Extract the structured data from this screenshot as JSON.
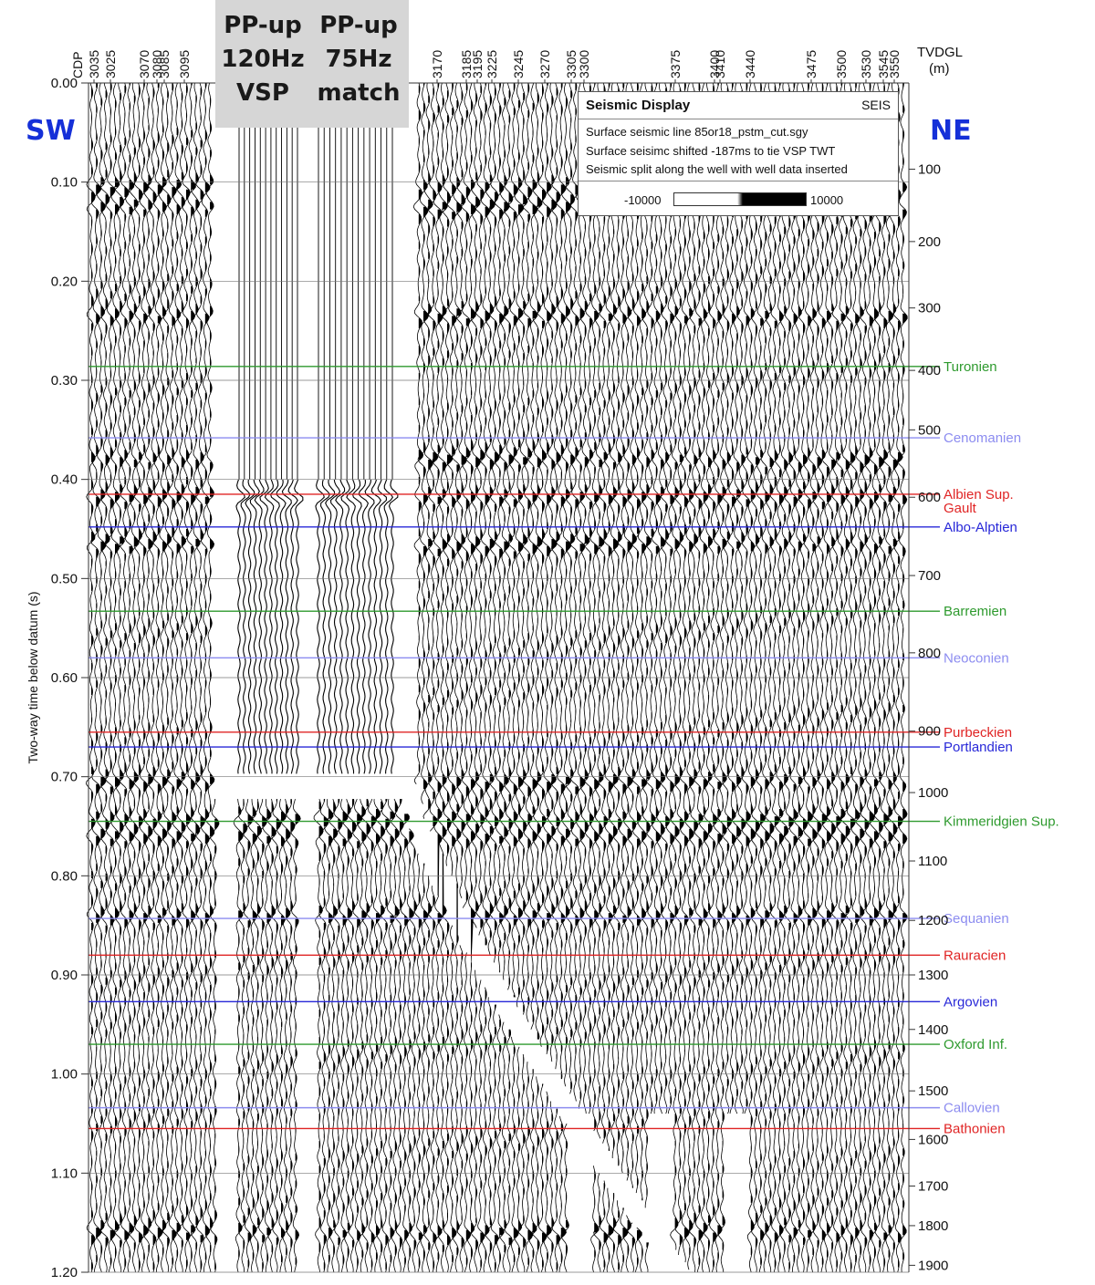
{
  "chart_data": {
    "type": "seismic-section",
    "direction_left": "SW",
    "direction_right": "NE",
    "ylabel": "Two-way time below datum (s)",
    "ylim": [
      0.0,
      1.2
    ],
    "y_ticks": [
      "0.00",
      "0.10",
      "0.20",
      "0.30",
      "0.40",
      "0.50",
      "0.60",
      "0.70",
      "0.80",
      "0.90",
      "1.00",
      "1.10",
      "1.20"
    ],
    "cdp_axis_label": "CDP",
    "cdp_labels_left": [
      "3035",
      "3025",
      "3070",
      "3080",
      "3085",
      "3095"
    ],
    "cdp_labels_right": [
      "3170",
      "3185",
      "3195",
      "3225",
      "3245",
      "3270",
      "3305",
      "3300",
      "3375",
      "3400",
      "3410",
      "3440",
      "3475",
      "3500",
      "3530",
      "3545",
      "3550"
    ],
    "depth_axis_label": "TVDGL",
    "depth_axis_unit": "(m)",
    "depth_ticks": [
      {
        "label": "100",
        "t": 0.087
      },
      {
        "label": "200",
        "t": 0.16
      },
      {
        "label": "300",
        "t": 0.227
      },
      {
        "label": "400",
        "t": 0.29
      },
      {
        "label": "500",
        "t": 0.35
      },
      {
        "label": "600",
        "t": 0.418
      },
      {
        "label": "700",
        "t": 0.497
      },
      {
        "label": "800",
        "t": 0.575
      },
      {
        "label": "900",
        "t": 0.654
      },
      {
        "label": "1000",
        "t": 0.716
      },
      {
        "label": "1100",
        "t": 0.785
      },
      {
        "label": "1200",
        "t": 0.845
      },
      {
        "label": "1300",
        "t": 0.9
      },
      {
        "label": "1400",
        "t": 0.955
      },
      {
        "label": "1500",
        "t": 1.017
      },
      {
        "label": "1600",
        "t": 1.066
      },
      {
        "label": "1700",
        "t": 1.113
      },
      {
        "label": "1800",
        "t": 1.153
      },
      {
        "label": "1900",
        "t": 1.193
      }
    ],
    "horizons": [
      {
        "name": "Turonien",
        "t": 0.286,
        "color": "#2e9a2e"
      },
      {
        "name": "Cenomanien",
        "t": 0.358,
        "color": "#8c8cf0"
      },
      {
        "name": "Albien Sup.",
        "name2": "Gault",
        "t": 0.415,
        "color": "#e02424"
      },
      {
        "name": "Albo-Alptien",
        "t": 0.448,
        "color": "#2828d8"
      },
      {
        "name": "Barremien",
        "t": 0.533,
        "color": "#2e9a2e"
      },
      {
        "name": "Neoconien",
        "t": 0.58,
        "color": "#8c8cf0"
      },
      {
        "name": "Purbeckien",
        "t": 0.655,
        "color": "#e02424"
      },
      {
        "name": "Portlandien",
        "t": 0.67,
        "color": "#2828d8"
      },
      {
        "name": "Kimmeridgien Sup.",
        "t": 0.745,
        "color": "#2e9a2e"
      },
      {
        "name": "Sequanien",
        "t": 0.843,
        "color": "#8c8cf0"
      },
      {
        "name": "Rauracien",
        "t": 0.88,
        "color": "#e02424"
      },
      {
        "name": "Argovien",
        "t": 0.927,
        "color": "#2828d8"
      },
      {
        "name": "Oxford Inf.",
        "t": 0.97,
        "color": "#2e9a2e"
      },
      {
        "name": "Callovien",
        "t": 1.034,
        "color": "#8c8cf0"
      },
      {
        "name": "Bathonien",
        "t": 1.055,
        "color": "#e02424"
      }
    ],
    "strong_reflectors_s": [
      0.105,
      0.125,
      0.235,
      0.38,
      0.418,
      0.465,
      0.705,
      0.742,
      0.76,
      0.84,
      1.16
    ],
    "colors": {
      "trace": "#000000",
      "header_box": "#d6d6d6",
      "direction_text": "#1530d8"
    }
  },
  "panels": {
    "vsp_120": {
      "line1": "PP-up",
      "line2": "120Hz",
      "line3": "VSP"
    },
    "vsp_75": {
      "line1": "PP-up",
      "line2": "75Hz",
      "line3": "match"
    }
  },
  "legend": {
    "title": "Seismic Display",
    "code": "SEIS",
    "line1": "Surface seismic line 85or18_pstm_cut.sgy",
    "line2": "Surface seisimc shifted -187ms to tie VSP TWT",
    "line3": "Seismic split along the well with well data inserted",
    "scale_min": "-10000",
    "scale_max": "10000"
  }
}
